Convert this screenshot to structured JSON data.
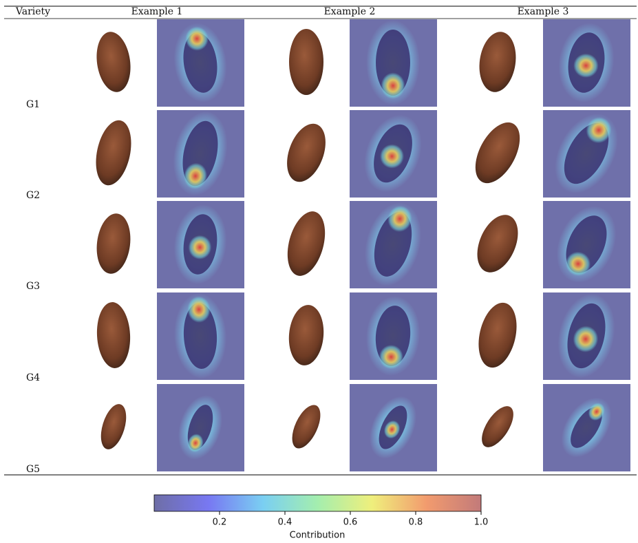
{
  "header": {
    "columns": [
      "Variety",
      "Example 1",
      "Example 2",
      "Example 3"
    ]
  },
  "rows": [
    "G1",
    "G2",
    "G3",
    "G4",
    "G5"
  ],
  "colorbar": {
    "label": "Contribution",
    "lim": [
      0,
      1
    ],
    "ticks": [
      0.2,
      0.4,
      0.6,
      0.8,
      {
        "value": 1,
        "label": "1.0"
      }
    ],
    "colors": [
      "#6e6ea6",
      "#7878f2",
      "#7acff2",
      "#a4eeae",
      "#efef7c",
      "#f29b6e",
      "#c27a7a"
    ]
  }
}
